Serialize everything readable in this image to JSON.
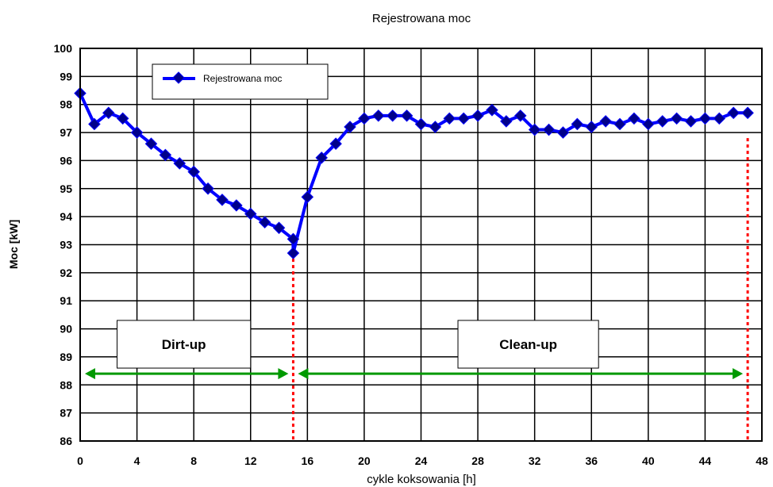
{
  "chart_data": {
    "type": "line",
    "title": "Rejestrowana moc",
    "xlabel": "cykle koksowania [h]",
    "ylabel": "Moc [kW]",
    "xlim": [
      0,
      48
    ],
    "ylim": [
      86,
      100
    ],
    "x_ticks": [
      0,
      4,
      8,
      12,
      16,
      20,
      24,
      28,
      32,
      36,
      40,
      44,
      48
    ],
    "y_ticks": [
      86,
      87,
      88,
      89,
      90,
      91,
      92,
      93,
      94,
      95,
      96,
      97,
      98,
      99,
      100
    ],
    "grid": true,
    "legend_position": "top-left",
    "series": [
      {
        "name": "Rejestrowana moc",
        "color": "#0000ff",
        "marker_color": "#00008b",
        "x": [
          0,
          1,
          2,
          3,
          4,
          5,
          6,
          7,
          8,
          9,
          10,
          11,
          12,
          13,
          14,
          15,
          15,
          16,
          17,
          18,
          19,
          20,
          21,
          22,
          23,
          24,
          25,
          26,
          27,
          28,
          29,
          30,
          31,
          32,
          33,
          34,
          35,
          36,
          37,
          38,
          39,
          40,
          41,
          42,
          43,
          44,
          45,
          46,
          47
        ],
        "y": [
          98.4,
          97.3,
          97.7,
          97.5,
          97.0,
          96.6,
          96.2,
          95.9,
          95.6,
          95.0,
          94.6,
          94.4,
          94.1,
          93.8,
          93.6,
          93.2,
          92.7,
          94.7,
          96.1,
          96.6,
          97.2,
          97.5,
          97.6,
          97.6,
          97.6,
          97.3,
          97.2,
          97.5,
          97.5,
          97.6,
          97.8,
          97.4,
          97.6,
          97.1,
          97.1,
          97.0,
          97.3,
          97.2,
          97.4,
          97.3,
          97.5,
          97.3,
          97.4,
          97.5,
          97.4,
          97.5,
          97.5,
          97.7,
          97.7
        ]
      }
    ],
    "markers": {
      "dividers": {
        "x": [
          15,
          47
        ],
        "y_from": 86,
        "y_to_first": 92.5,
        "y_to_second": 96.8,
        "color": "#ff0000"
      },
      "arrows": [
        {
          "from": 0,
          "to": 15,
          "y": 88.4,
          "color": "#009900"
        },
        {
          "from": 15,
          "to": 47,
          "y": 88.4,
          "color": "#009900"
        }
      ]
    },
    "annotations": [
      {
        "text": "Dirt-up",
        "x_from": 2.6,
        "x_to": 12,
        "y_from": 88.6,
        "y_to": 90.3
      },
      {
        "text": "Clean-up",
        "x_from": 26.6,
        "x_to": 36.5,
        "y_from": 88.6,
        "y_to": 90.3
      }
    ]
  }
}
